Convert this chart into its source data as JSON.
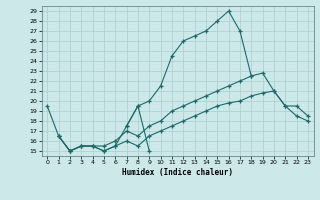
{
  "title": "",
  "xlabel": "Humidex (Indice chaleur)",
  "bg_color": "#cce8e8",
  "grid_color": "#aacece",
  "line_color": "#1a6b6b",
  "xlim": [
    -0.5,
    23.5
  ],
  "ylim": [
    14.5,
    29.5
  ],
  "xticks": [
    0,
    1,
    2,
    3,
    4,
    5,
    6,
    7,
    8,
    9,
    10,
    11,
    12,
    13,
    14,
    15,
    16,
    17,
    18,
    19,
    20,
    21,
    22,
    23
  ],
  "yticks": [
    15,
    16,
    17,
    18,
    19,
    20,
    21,
    22,
    23,
    24,
    25,
    26,
    27,
    28,
    29
  ],
  "series": [
    {
      "x": [
        0,
        1,
        2,
        3,
        4,
        5,
        6,
        7,
        8,
        9,
        10,
        11,
        12,
        13,
        14,
        15,
        16,
        17,
        18
      ],
      "y": [
        19.5,
        16.5,
        15.0,
        15.5,
        15.5,
        15.0,
        15.5,
        17.5,
        19.5,
        20.0,
        21.5,
        24.5,
        26.0,
        26.5,
        27.0,
        28.0,
        29.0,
        27.0,
        22.5
      ]
    },
    {
      "x": [
        7,
        8,
        9
      ],
      "y": [
        17.5,
        19.5,
        15.0
      ]
    },
    {
      "x": [
        1,
        2,
        3,
        4,
        5,
        6,
        7,
        8,
        9,
        10,
        11,
        12,
        13,
        14,
        15,
        16,
        17,
        18,
        19,
        20,
        21,
        22,
        23
      ],
      "y": [
        16.5,
        15.0,
        15.5,
        15.5,
        15.0,
        15.5,
        16.0,
        15.5,
        16.5,
        17.0,
        17.5,
        18.0,
        18.5,
        19.0,
        19.5,
        19.8,
        20.0,
        20.5,
        20.8,
        21.0,
        19.5,
        18.5,
        18.0
      ]
    },
    {
      "x": [
        1,
        2,
        3,
        4,
        5,
        6,
        7,
        8,
        9,
        10,
        11,
        12,
        13,
        14,
        15,
        16,
        17,
        18,
        19,
        20,
        21,
        22,
        23
      ],
      "y": [
        16.5,
        15.0,
        15.5,
        15.5,
        15.5,
        16.0,
        17.0,
        16.5,
        17.5,
        18.0,
        19.0,
        19.5,
        20.0,
        20.5,
        21.0,
        21.5,
        22.0,
        22.5,
        22.8,
        21.0,
        19.5,
        19.5,
        18.5
      ]
    }
  ]
}
